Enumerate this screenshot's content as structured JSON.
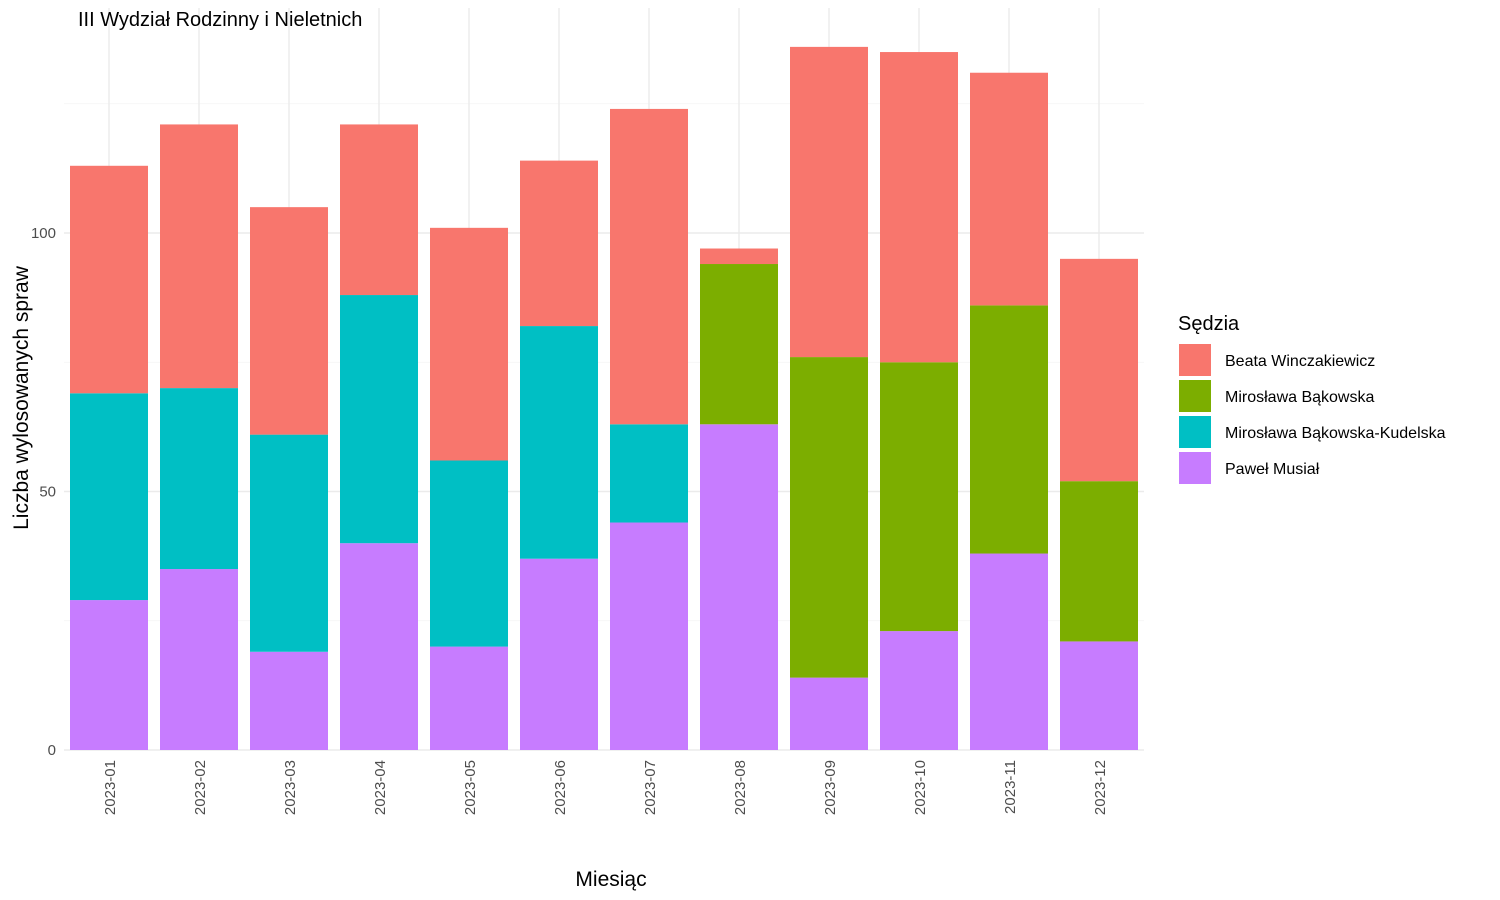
{
  "chart_data": {
    "type": "bar",
    "stacked": true,
    "title": "III Wydział Rodzinny i Nieletnich",
    "xlabel": "Miesiąc",
    "ylabel": "Liczba wylosowanych spraw",
    "ylim": [
      0,
      140
    ],
    "yticks": [
      0,
      50,
      100
    ],
    "grid": true,
    "legend": {
      "title": "Sędzia",
      "position": "right"
    },
    "categories": [
      "2023-01",
      "2023-02",
      "2023-03",
      "2023-04",
      "2023-05",
      "2023-06",
      "2023-07",
      "2023-08",
      "2023-09",
      "2023-10",
      "2023-11",
      "2023-12"
    ],
    "series": [
      {
        "name": "Beata Winczakiewicz",
        "color": "#F8766D",
        "values": [
          44,
          51,
          44,
          33,
          45,
          32,
          61,
          3,
          60,
          60,
          45,
          43
        ]
      },
      {
        "name": "Mirosława Bąkowska",
        "color": "#7CAE00",
        "values": [
          0,
          0,
          0,
          0,
          0,
          0,
          0,
          31,
          62,
          52,
          48,
          31
        ]
      },
      {
        "name": "Mirosława Bąkowska-Kudelska",
        "color": "#00BFC4",
        "values": [
          40,
          35,
          42,
          48,
          36,
          45,
          19,
          0,
          0,
          0,
          0,
          0
        ]
      },
      {
        "name": "Paweł Musiał",
        "color": "#C77CFF",
        "values": [
          29,
          35,
          19,
          40,
          20,
          37,
          44,
          63,
          14,
          23,
          38,
          21
        ]
      }
    ]
  }
}
